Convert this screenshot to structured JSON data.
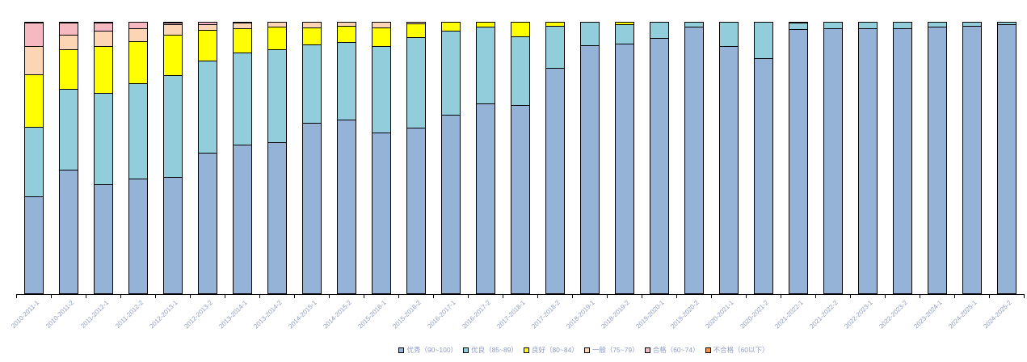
{
  "chart_data": {
    "type": "bar",
    "stacked": true,
    "units": "percent",
    "title": "",
    "xlabel": "",
    "ylabel": "",
    "ylim": [
      0,
      100
    ],
    "grid": false,
    "legend_position": "bottom-center",
    "categories": [
      "2010-2011-1",
      "2010-2011-2",
      "2011-2012-1",
      "2011-2012-2",
      "2012-2013-1",
      "2012-2013-2",
      "2013-2014-1",
      "2013-2014-2",
      "2014-2015-1",
      "2014-2015-2",
      "2015-2016-1",
      "2015-2016-2",
      "2016-2017-1",
      "2016-2017-2",
      "2017-2018-1",
      "2017-2018-2",
      "2018-2019-1",
      "2018-2019-2",
      "2019-2020-1",
      "2019-2020-2",
      "2020-2021-1",
      "2020-2021-2",
      "2021-2022-1",
      "2021-2022-2",
      "2022-2023-1",
      "2022-2023-2",
      "2023-2024-1",
      "2024-2025-1",
      "2024-2025-2"
    ],
    "series": [
      {
        "name": "优秀（90~100）",
        "color": "#95B3D7",
        "values": [
          35.6,
          45.3,
          39.9,
          41.9,
          42.7,
          51.6,
          54.5,
          55.3,
          62.6,
          63.8,
          58.9,
          60.7,
          65.6,
          69.9,
          69.3,
          83.0,
          91.1,
          91.7,
          93.8,
          98.0,
          90.9,
          86.3,
          97.2,
          97.6,
          97.6,
          97.4,
          98.0,
          98.4,
          99.0
        ]
      },
      {
        "name": "优良（85~89）",
        "color": "#92CDDC",
        "values": [
          25.4,
          29.7,
          33.8,
          35.3,
          37.4,
          34.0,
          34.0,
          34.4,
          28.9,
          28.7,
          32.1,
          33.6,
          30.9,
          28.1,
          25.2,
          15.5,
          8.9,
          7.4,
          6.2,
          2.0,
          9.1,
          13.7,
          2.5,
          2.4,
          2.4,
          2.6,
          2.0,
          1.6,
          1.0
        ]
      },
      {
        "name": "良好（80~84）",
        "color": "#FFFF00",
        "values": [
          19.6,
          14.6,
          17.1,
          15.5,
          15.1,
          11.3,
          8.9,
          8.4,
          6.4,
          5.9,
          6.9,
          4.9,
          3.5,
          2.0,
          5.5,
          1.5,
          0,
          0.9,
          0,
          0,
          0,
          0,
          0.3,
          0,
          0,
          0,
          0,
          0,
          0
        ]
      },
      {
        "name": "一般（75~79）",
        "color": "#FCD5B4",
        "values": [
          10.4,
          5.5,
          5.8,
          4.7,
          3.9,
          2.2,
          2.2,
          1.9,
          2.1,
          1.6,
          2.1,
          0.8,
          0,
          0,
          0,
          0,
          0,
          0,
          0,
          0,
          0,
          0,
          0,
          0,
          0,
          0,
          0,
          0,
          0
        ]
      },
      {
        "name": "合格（60~74）",
        "color": "#F7B9C1",
        "values": [
          8.6,
          4.4,
          3.0,
          2.6,
          0.4,
          0.9,
          0.4,
          0,
          0,
          0,
          0,
          0,
          0,
          0,
          0,
          0,
          0,
          0,
          0,
          0,
          0,
          0,
          0,
          0,
          0,
          0,
          0,
          0,
          0
        ]
      },
      {
        "name": "不合格（60以下）",
        "color": "#F79646",
        "values": [
          0.4,
          0.5,
          0.4,
          0,
          0.5,
          0,
          0,
          0,
          0,
          0,
          0,
          0,
          0,
          0,
          0,
          0,
          0,
          0,
          0,
          0,
          0,
          0,
          0,
          0,
          0,
          0,
          0,
          0,
          0
        ]
      }
    ]
  },
  "colors": {
    "background": "#FFFFFF",
    "axis": "#000000",
    "bar_border": "#000000",
    "tick_label_text": "#8E9CC2",
    "legend_text": "#8E9CC2"
  }
}
